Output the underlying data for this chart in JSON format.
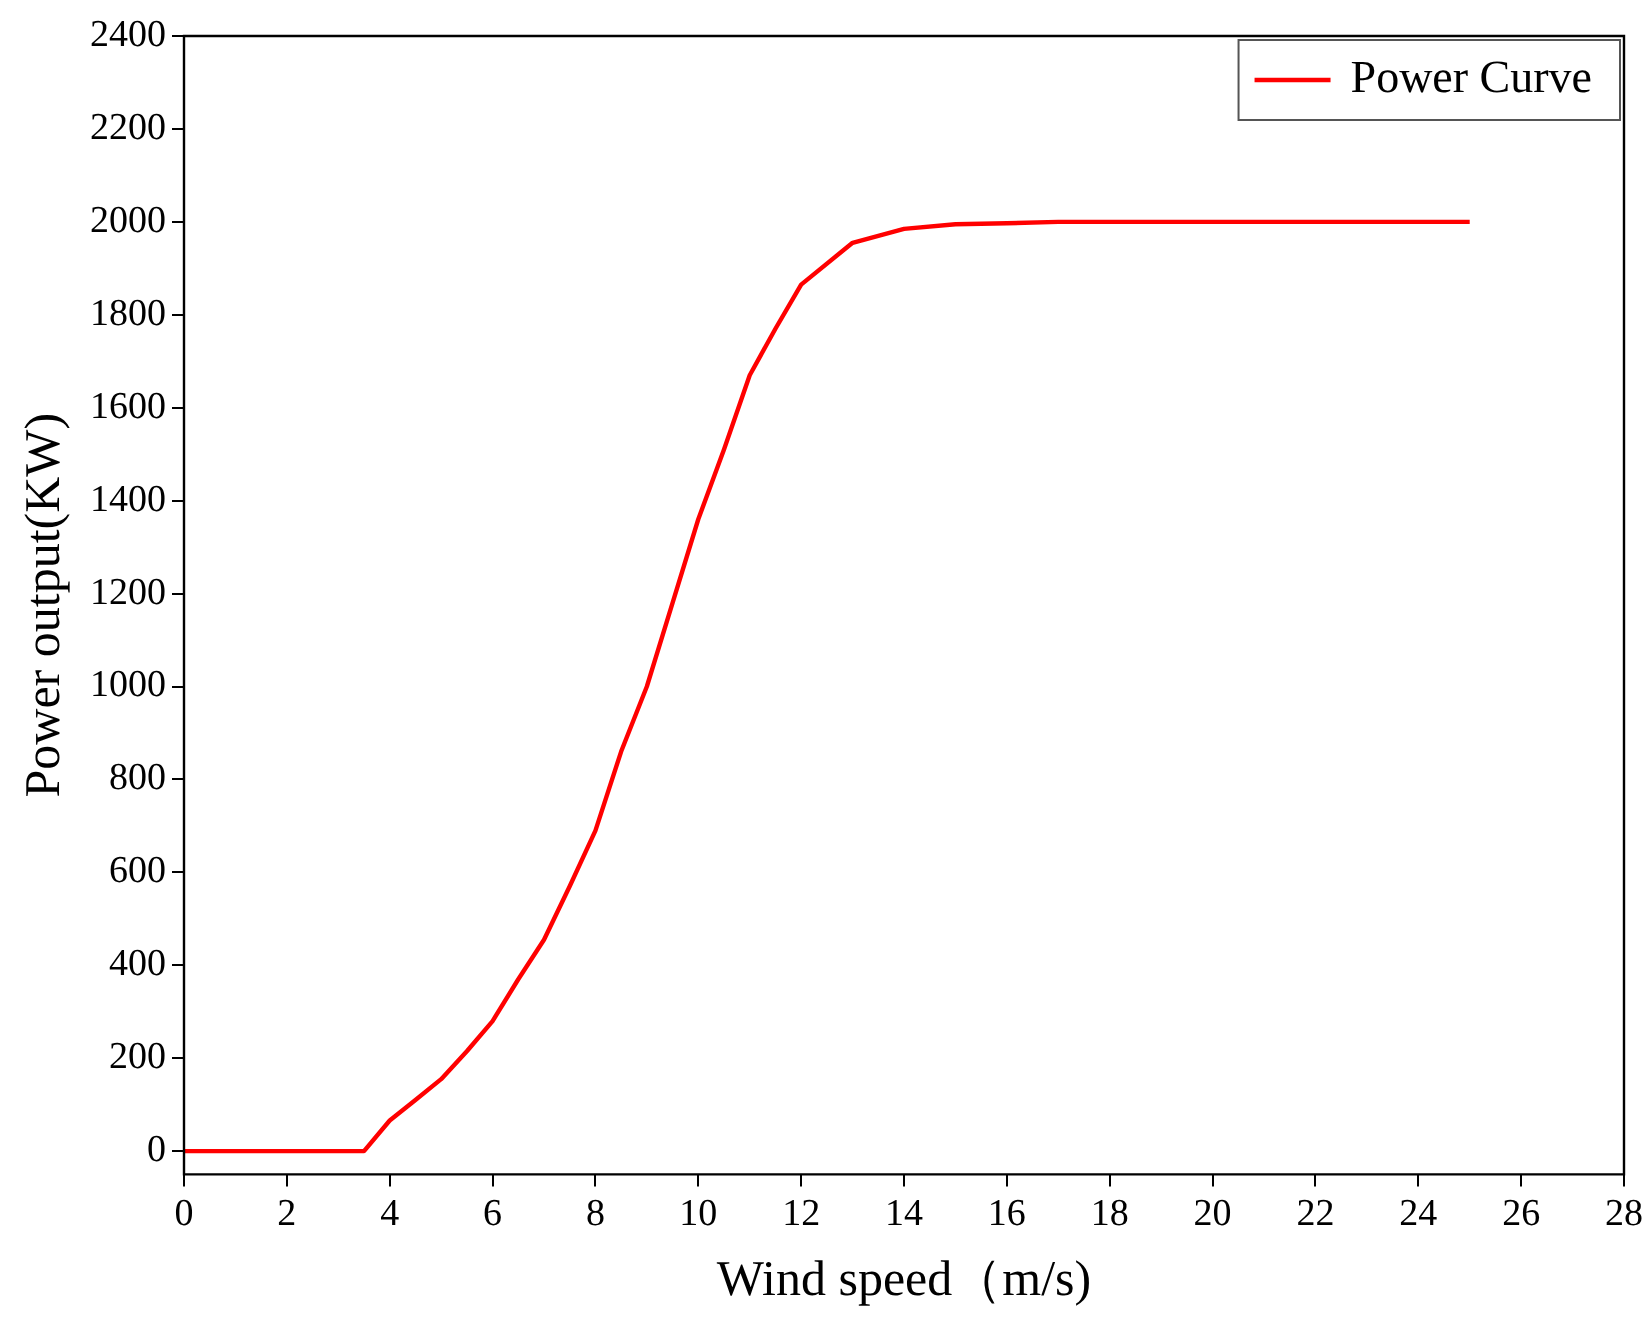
{
  "chart_data": {
    "type": "line",
    "xlabel": "Wind speed（m/s)",
    "ylabel": "Power output(KW)",
    "x": [
      0,
      3.5,
      4,
      4.5,
      5,
      5.5,
      6,
      6.5,
      7,
      7.5,
      8,
      8.5,
      9,
      9.5,
      10,
      10.5,
      11,
      11.5,
      12,
      13,
      14,
      15,
      16,
      17,
      25
    ],
    "series": [
      {
        "name": "Power Curve",
        "color": "#ff0000",
        "values": [
          0,
          0,
          66,
          110,
          155,
          215,
          280,
          370,
          455,
          570,
          690,
          860,
          1000,
          1180,
          1360,
          1510,
          1670,
          1770,
          1865,
          1955,
          1985,
          1995,
          1997,
          2000,
          2000
        ]
      }
    ],
    "xlim": [
      0,
      28
    ],
    "xticks": [
      0,
      2,
      4,
      6,
      8,
      10,
      12,
      14,
      16,
      18,
      20,
      22,
      24,
      26,
      28
    ],
    "ylim": [
      -50,
      2400
    ],
    "yticks": [
      0,
      200,
      400,
      600,
      800,
      1000,
      1200,
      1400,
      1600,
      1800,
      2000,
      2200,
      2400
    ],
    "legend": "top right",
    "marker": "none",
    "line_style": "solid"
  }
}
